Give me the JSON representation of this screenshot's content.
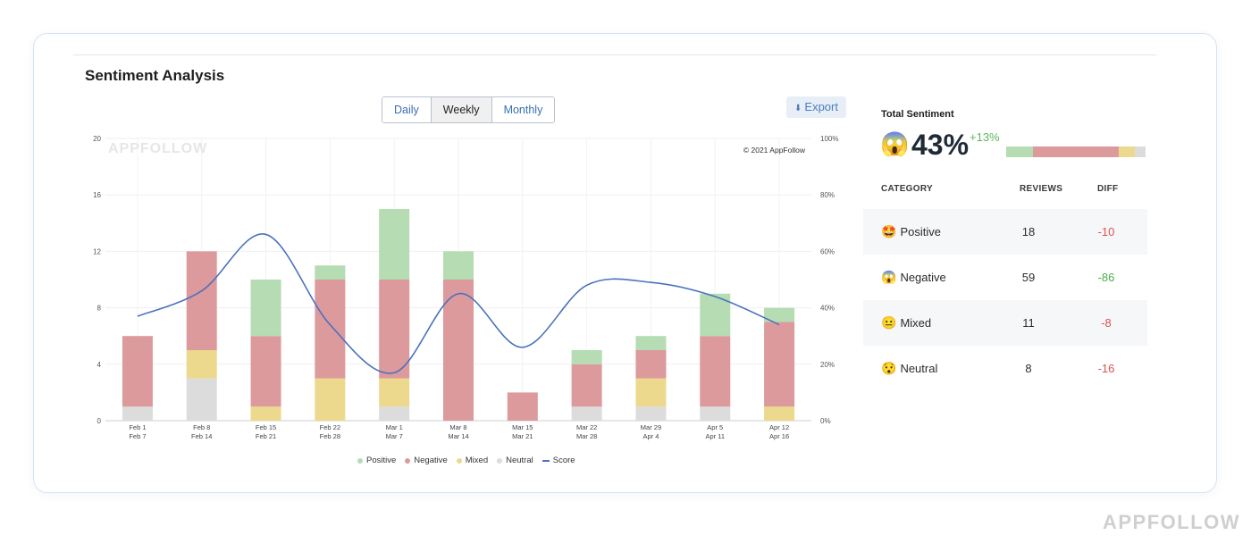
{
  "panel": {
    "title": "Sentiment Analysis",
    "toggle": [
      "Daily",
      "Weekly",
      "Monthly"
    ],
    "toggle_active": "Weekly",
    "export_label": "Export",
    "watermark": "APPFOLLOW",
    "copyright": "© 2021 AppFollow"
  },
  "colors": {
    "positive": "#b5dcb2",
    "negative": "#dc9a9d",
    "mixed": "#ecd98d",
    "neutral": "#dcdcdc",
    "score": "#4a72bd",
    "accent": "#4a7cc0"
  },
  "chart_data": {
    "type": "bar",
    "stacked": true,
    "categories": [
      [
        "Feb 1",
        "Feb 7"
      ],
      [
        "Feb 8",
        "Feb 14"
      ],
      [
        "Feb 15",
        "Feb 21"
      ],
      [
        "Feb 22",
        "Feb 28"
      ],
      [
        "Mar 1",
        "Mar 7"
      ],
      [
        "Mar 8",
        "Mar 14"
      ],
      [
        "Mar 15",
        "Mar 21"
      ],
      [
        "Mar 22",
        "Mar 28"
      ],
      [
        "Mar 29",
        "Apr 4"
      ],
      [
        "Apr 5",
        "Apr 11"
      ],
      [
        "Apr 12",
        "Apr 16"
      ]
    ],
    "series": [
      {
        "name": "Neutral",
        "values": [
          1,
          3,
          0,
          0,
          1,
          0,
          0,
          1,
          1,
          1,
          0
        ]
      },
      {
        "name": "Mixed",
        "values": [
          0,
          2,
          1,
          3,
          2,
          0,
          0,
          0,
          2,
          0,
          1
        ]
      },
      {
        "name": "Negative",
        "values": [
          5,
          7,
          5,
          7,
          7,
          10,
          2,
          3,
          2,
          5,
          6
        ]
      },
      {
        "name": "Positive",
        "values": [
          0,
          0,
          4,
          1,
          5,
          2,
          0,
          1,
          1,
          3,
          1
        ]
      }
    ],
    "line_series": {
      "name": "Score",
      "values": [
        37,
        46,
        66,
        34,
        17,
        45,
        26,
        48,
        49,
        44,
        34
      ],
      "axis": "right"
    },
    "ylim": [
      0,
      20
    ],
    "yticks": [
      0,
      4,
      8,
      12,
      16,
      20
    ],
    "y2lim": [
      0,
      100
    ],
    "y2ticks": [
      "0%",
      "20%",
      "40%",
      "60%",
      "80%",
      "100%"
    ],
    "legend": [
      "Positive",
      "Negative",
      "Mixed",
      "Neutral",
      "Score"
    ],
    "legend_position": "bottom",
    "grid": true
  },
  "total": {
    "label": "Total Sentiment",
    "emoji": "😱",
    "value": "43%",
    "diff": "+13%",
    "bar_shares": [
      {
        "name": "positive",
        "share": 0.19
      },
      {
        "name": "negative",
        "share": 0.62
      },
      {
        "name": "mixed",
        "share": 0.11
      },
      {
        "name": "neutral",
        "share": 0.08
      }
    ]
  },
  "table": {
    "headers": {
      "category": "CATEGORY",
      "reviews": "REVIEWS",
      "diff": "DIFF"
    },
    "rows": [
      {
        "emoji": "🤩",
        "label": "Positive",
        "reviews": "18",
        "diff": "-10",
        "diff_type": "neg"
      },
      {
        "emoji": "😱",
        "label": "Negative",
        "reviews": "59",
        "diff": "-86",
        "diff_type": "pos"
      },
      {
        "emoji": "😐",
        "label": "Mixed",
        "reviews": "11",
        "diff": "-8",
        "diff_type": "neg"
      },
      {
        "emoji": "😯",
        "label": "Neutral",
        "reviews": "8",
        "diff": "-16",
        "diff_type": "neg"
      }
    ]
  },
  "brand": "APPFOLLOW"
}
